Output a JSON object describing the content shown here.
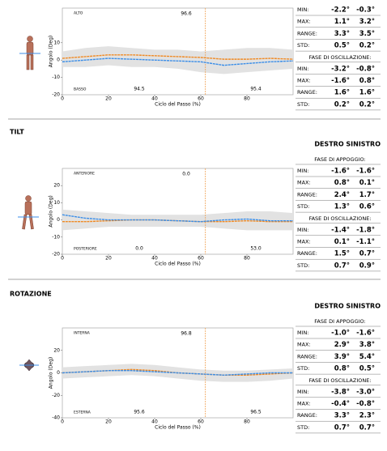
{
  "chart_data": [
    {
      "type": "line",
      "x": [
        0,
        10,
        20,
        30,
        40,
        50,
        60,
        70,
        80,
        90,
        100
      ],
      "xlim": [
        0,
        100
      ],
      "xticks": [
        0,
        20,
        40,
        60,
        80
      ],
      "ylim": [
        -20,
        30
      ],
      "yticks": [
        -20,
        -10,
        0,
        10
      ],
      "xlabel": "Ciclo del Passo (%)",
      "ylabel": "Angolo (Deg)",
      "top_left": "ALTO",
      "top_value": "96.6",
      "bottom_left": "BASSO",
      "bottom_values": [
        "94.5",
        "95.4"
      ],
      "events": [
        62
      ],
      "event_color": "#f0a050",
      "band": {
        "color": "#e2e2e2",
        "upper": [
          5,
          7,
          8,
          7,
          6,
          6,
          5,
          6,
          7,
          7,
          6
        ],
        "lower": [
          -4,
          -4,
          -3,
          -4,
          -4,
          -5,
          -7,
          -8,
          -7,
          -6,
          -5
        ]
      },
      "series": [
        {
          "color": "#f08a24",
          "values": [
            1,
            2,
            3,
            3,
            2.5,
            2,
            1.5,
            0.5,
            0.5,
            1,
            0.5
          ]
        },
        {
          "color": "#3b8ee8",
          "values": [
            -1,
            0,
            1,
            0.5,
            0,
            -0.5,
            -1,
            -3,
            -2,
            -1,
            -0.5
          ]
        }
      ]
    },
    {
      "type": "line",
      "x": [
        0,
        10,
        20,
        30,
        40,
        50,
        60,
        70,
        80,
        90,
        100
      ],
      "xlim": [
        0,
        100
      ],
      "xticks": [
        0,
        20,
        40,
        60,
        80
      ],
      "ylim": [
        -20,
        30
      ],
      "yticks": [
        -20,
        -10,
        0,
        10,
        20
      ],
      "xlabel": "Ciclo del Passo (%)",
      "ylabel": "Angolo (Deg)",
      "top_left": "ANTERIORE",
      "top_value": "0.0",
      "bottom_left": "POSTERIORE",
      "bottom_values": [
        "0.0",
        "53.0"
      ],
      "events": [
        62
      ],
      "event_color": "#f0a050",
      "band": {
        "color": "#e2e2e2",
        "upper": [
          6,
          5,
          4,
          3,
          3,
          3,
          3,
          4,
          5,
          5,
          4
        ],
        "lower": [
          -6,
          -5,
          -4,
          -4,
          -4,
          -4,
          -4,
          -5,
          -6,
          -6,
          -6
        ]
      },
      "series": [
        {
          "color": "#f08a24",
          "values": [
            -1,
            -1,
            -0.5,
            0,
            0,
            -0.5,
            -1,
            -1,
            -0.5,
            -1,
            -1
          ]
        },
        {
          "color": "#3b8ee8",
          "values": [
            3,
            1,
            0,
            0,
            0,
            -0.5,
            -1,
            0,
            0.5,
            -0.5,
            -0.5
          ]
        }
      ]
    },
    {
      "type": "line",
      "x": [
        0,
        10,
        20,
        30,
        40,
        50,
        60,
        70,
        80,
        90,
        100
      ],
      "xlim": [
        0,
        100
      ],
      "xticks": [
        0,
        20,
        40,
        60,
        80
      ],
      "ylim": [
        -40,
        40
      ],
      "yticks": [
        -40,
        -20,
        0,
        20
      ],
      "xlabel": "Ciclo del Passo (%)",
      "ylabel": "Angolo (Deg)",
      "top_left": "INTERNA",
      "top_value": "96.8",
      "bottom_left": "ESTERNA",
      "bottom_values": [
        "95.6",
        "96.5"
      ],
      "events": [
        62
      ],
      "event_color": "#f0a050",
      "band": {
        "color": "#e2e2e2",
        "upper": [
          5,
          6,
          7,
          8,
          7,
          5,
          3,
          2,
          2,
          3,
          4
        ],
        "lower": [
          -5,
          -4,
          -3,
          -2,
          -3,
          -5,
          -7,
          -8,
          -8,
          -7,
          -5
        ]
      },
      "series": [
        {
          "color": "#f08a24",
          "values": [
            0,
            1,
            2,
            3,
            2,
            0,
            -1,
            -2,
            -2,
            -1,
            0
          ]
        },
        {
          "color": "#3b8ee8",
          "values": [
            0,
            1,
            2,
            2,
            1,
            0,
            -1,
            -2,
            -1,
            0,
            0
          ]
        }
      ]
    }
  ],
  "sections": [
    {
      "blocks": [
        {
          "rows": [
            [
              "MIN:",
              "-2.2°",
              "-0.3°"
            ],
            [
              "MAX:",
              "1.1°",
              "3.2°"
            ],
            [
              "RANGE:",
              "3.3°",
              "3.5°"
            ],
            [
              "STD:",
              "0.5°",
              "0.2°"
            ]
          ]
        },
        {
          "phase": "FASE DI OSCILLAZIONE:",
          "rows": [
            [
              "MIN:",
              "-3.2°",
              "-0.8°"
            ],
            [
              "MAX:",
              "-1.6°",
              "0.8°"
            ],
            [
              "RANGE:",
              "1.6°",
              "1.6°"
            ],
            [
              "STD:",
              "0.2°",
              "0.2°"
            ]
          ]
        }
      ]
    },
    {
      "title": "TILT",
      "header": "DESTRO SINISTRO",
      "blocks": [
        {
          "phase": "FASE DI APPOGGIO:",
          "rows": [
            [
              "MIN:",
              "-1.6°",
              "-1.6°"
            ],
            [
              "MAX:",
              "0.8°",
              "0.1°"
            ],
            [
              "RANGE:",
              "2.4°",
              "1.7°"
            ],
            [
              "STD:",
              "1.3°",
              "0.6°"
            ]
          ]
        },
        {
          "phase": "FASE DI OSCILLAZIONE:",
          "rows": [
            [
              "MIN:",
              "-1.4°",
              "-1.8°"
            ],
            [
              "MAX:",
              "0.1°",
              "-1.1°"
            ],
            [
              "RANGE:",
              "1.5°",
              "0.7°"
            ],
            [
              "STD:",
              "0.7°",
              "0.9°"
            ]
          ]
        }
      ]
    },
    {
      "title": "ROTAZIONE",
      "header": "DESTRO SINISTRO",
      "blocks": [
        {
          "phase": "FASE DI APPOGGIO:",
          "rows": [
            [
              "MIN:",
              "-1.0°",
              "-1.6°"
            ],
            [
              "MAX:",
              "2.9°",
              "3.8°"
            ],
            [
              "RANGE:",
              "3.9°",
              "5.4°"
            ],
            [
              "STD:",
              "0.8°",
              "0.5°"
            ]
          ]
        },
        {
          "phase": "FASE DI OSCILLAZIONE:",
          "rows": [
            [
              "MIN:",
              "-3.8°",
              "-3.0°"
            ],
            [
              "MAX:",
              "-0.4°",
              "-0.8°"
            ],
            [
              "RANGE:",
              "3.3°",
              "2.3°"
            ],
            [
              "STD:",
              "0.7°",
              "0.7°"
            ]
          ]
        }
      ]
    }
  ]
}
